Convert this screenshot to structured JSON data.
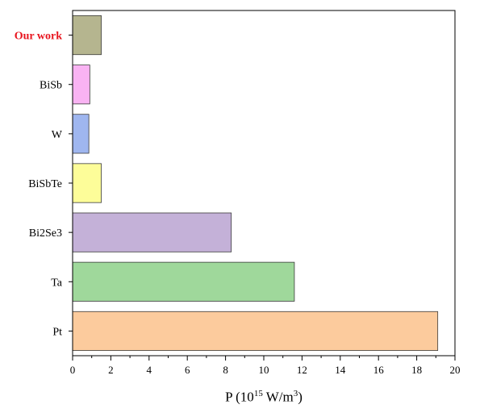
{
  "chart_data": {
    "type": "bar",
    "orientation": "horizontal",
    "categories": [
      "Our work",
      "BiSb",
      "W",
      "BiSbTe",
      "Bi2Se3",
      "Ta",
      "Pt"
    ],
    "values": [
      1.5,
      0.9,
      0.85,
      1.5,
      8.3,
      11.6,
      19.1
    ],
    "colors": [
      "#b5b58f",
      "#f9b3f3",
      "#9fb6ef",
      "#fdfd99",
      "#c4b1d8",
      "#9fd89b",
      "#fccb9d"
    ],
    "highlight_category": "Our work",
    "highlight_color": "#e8141e",
    "xlabel_prefix": "P (10",
    "xlabel_exp1": "15",
    "xlabel_mid": " W/m",
    "xlabel_exp2": "3",
    "xlabel_suffix": ")",
    "xlim": [
      0,
      20
    ],
    "xticks": [
      0,
      2,
      4,
      6,
      8,
      10,
      12,
      14,
      16,
      18,
      20
    ],
    "grid": false
  }
}
